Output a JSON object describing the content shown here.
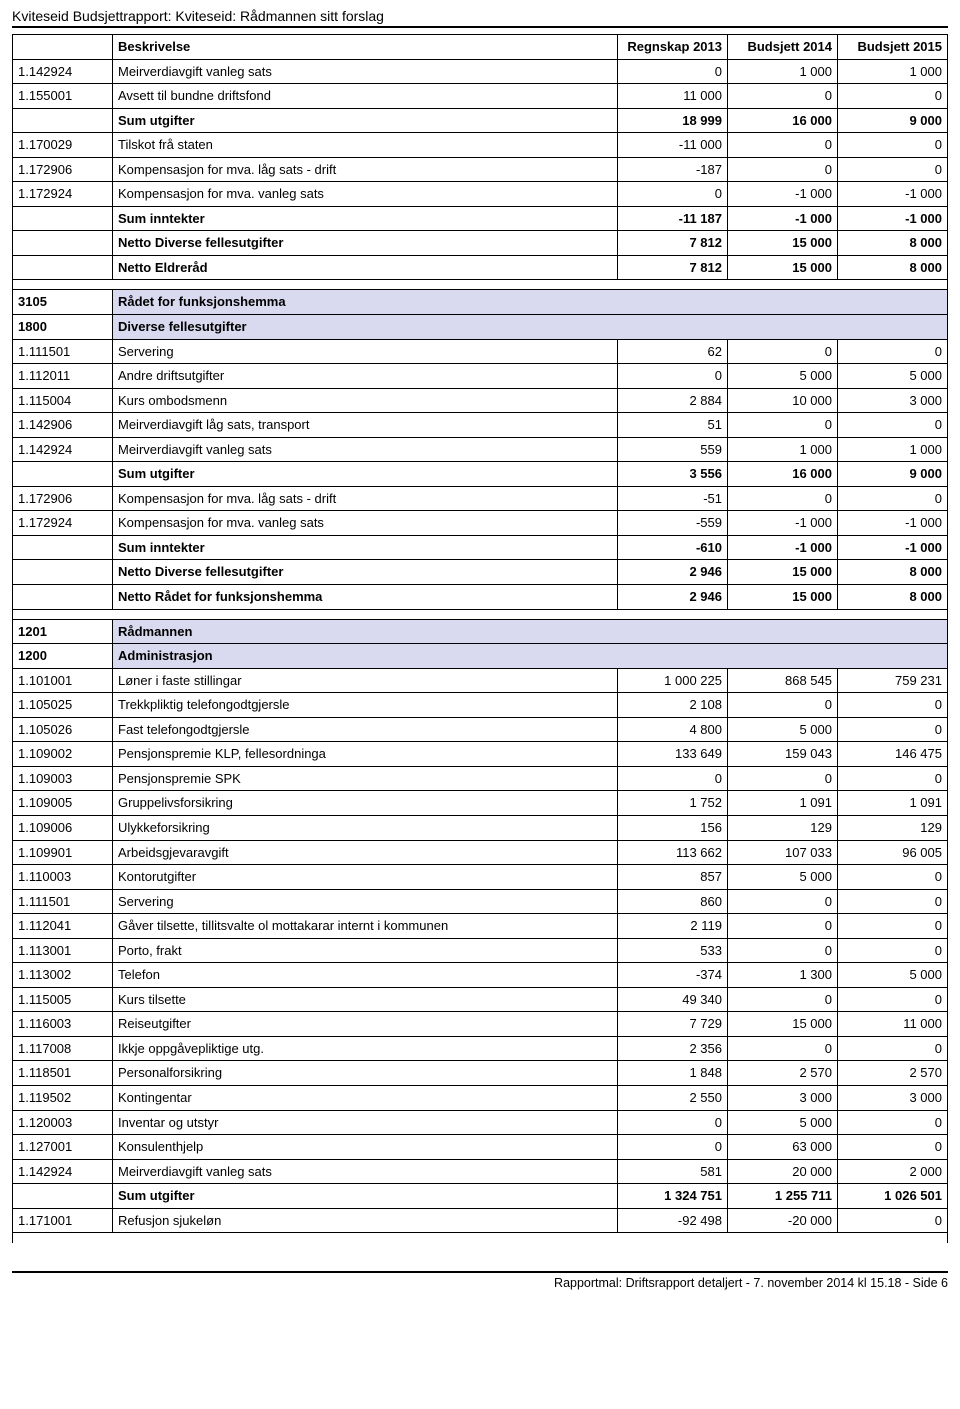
{
  "title": "Kviteseid Budsjettrapport: Kviteseid: Rådmannen sitt forslag",
  "columns": {
    "desc": "Beskrivelse",
    "c2013": "Regnskap 2013",
    "c2014": "Budsjett 2014",
    "c2015": "Budsjett 2015"
  },
  "rows": [
    {
      "type": "data",
      "code": "1.142924",
      "desc": "Meirverdiavgift vanleg sats",
      "v": [
        "0",
        "1 000",
        "1 000"
      ]
    },
    {
      "type": "data",
      "code": "1.155001",
      "desc": "Avsett til bundne driftsfond",
      "v": [
        "11 000",
        "0",
        "0"
      ]
    },
    {
      "type": "bold",
      "code": "",
      "desc": "Sum utgifter",
      "v": [
        "18 999",
        "16 000",
        "9 000"
      ]
    },
    {
      "type": "data",
      "code": "1.170029",
      "desc": "Tilskot frå staten",
      "v": [
        "-11 000",
        "0",
        "0"
      ]
    },
    {
      "type": "data",
      "code": "1.172906",
      "desc": "Kompensasjon for mva. låg sats - drift",
      "v": [
        "-187",
        "0",
        "0"
      ]
    },
    {
      "type": "data",
      "code": "1.172924",
      "desc": "Kompensasjon for mva. vanleg sats",
      "v": [
        "0",
        "-1 000",
        "-1 000"
      ]
    },
    {
      "type": "bold",
      "code": "",
      "desc": "Sum inntekter",
      "v": [
        "-11 187",
        "-1 000",
        "-1 000"
      ]
    },
    {
      "type": "bold",
      "code": "",
      "desc": "Netto Diverse fellesutgifter",
      "v": [
        "7 812",
        "15 000",
        "8 000"
      ]
    },
    {
      "type": "bold",
      "code": "",
      "desc": "Netto Eldreråd",
      "v": [
        "7 812",
        "15 000",
        "8 000"
      ]
    },
    {
      "type": "spacer"
    },
    {
      "type": "section",
      "code": "3105",
      "desc": "Rådet for funksjonshemma"
    },
    {
      "type": "section",
      "code": "1800",
      "desc": "Diverse fellesutgifter"
    },
    {
      "type": "data",
      "code": "1.111501",
      "desc": "Servering",
      "v": [
        "62",
        "0",
        "0"
      ]
    },
    {
      "type": "data",
      "code": "1.112011",
      "desc": "Andre driftsutgifter",
      "v": [
        "0",
        "5 000",
        "5 000"
      ]
    },
    {
      "type": "data",
      "code": "1.115004",
      "desc": "Kurs ombodsmenn",
      "v": [
        "2 884",
        "10 000",
        "3 000"
      ]
    },
    {
      "type": "data",
      "code": "1.142906",
      "desc": "Meirverdiavgift låg sats, transport",
      "v": [
        "51",
        "0",
        "0"
      ]
    },
    {
      "type": "data",
      "code": "1.142924",
      "desc": "Meirverdiavgift vanleg sats",
      "v": [
        "559",
        "1 000",
        "1 000"
      ]
    },
    {
      "type": "bold",
      "code": "",
      "desc": "Sum utgifter",
      "v": [
        "3 556",
        "16 000",
        "9 000"
      ]
    },
    {
      "type": "data",
      "code": "1.172906",
      "desc": "Kompensasjon for mva. låg sats - drift",
      "v": [
        "-51",
        "0",
        "0"
      ]
    },
    {
      "type": "data",
      "code": "1.172924",
      "desc": "Kompensasjon for mva. vanleg sats",
      "v": [
        "-559",
        "-1 000",
        "-1 000"
      ]
    },
    {
      "type": "bold",
      "code": "",
      "desc": "Sum inntekter",
      "v": [
        "-610",
        "-1 000",
        "-1 000"
      ]
    },
    {
      "type": "bold",
      "code": "",
      "desc": "Netto Diverse fellesutgifter",
      "v": [
        "2 946",
        "15 000",
        "8 000"
      ]
    },
    {
      "type": "bold",
      "code": "",
      "desc": "Netto Rådet for funksjonshemma",
      "v": [
        "2 946",
        "15 000",
        "8 000"
      ]
    },
    {
      "type": "spacer"
    },
    {
      "type": "section",
      "code": "1201",
      "desc": "Rådmannen"
    },
    {
      "type": "section",
      "code": "1200",
      "desc": "Administrasjon"
    },
    {
      "type": "data",
      "code": "1.101001",
      "desc": "Løner i faste stillingar",
      "v": [
        "1 000 225",
        "868 545",
        "759 231"
      ]
    },
    {
      "type": "data",
      "code": "1.105025",
      "desc": "Trekkpliktig telefongodtgjersle",
      "v": [
        "2 108",
        "0",
        "0"
      ]
    },
    {
      "type": "data",
      "code": "1.105026",
      "desc": "Fast telefongodtgjersle",
      "v": [
        "4 800",
        "5 000",
        "0"
      ]
    },
    {
      "type": "data",
      "code": "1.109002",
      "desc": "Pensjonspremie KLP, fellesordninga",
      "v": [
        "133 649",
        "159 043",
        "146 475"
      ]
    },
    {
      "type": "data",
      "code": "1.109003",
      "desc": "Pensjonspremie SPK",
      "v": [
        "0",
        "0",
        "0"
      ]
    },
    {
      "type": "data",
      "code": "1.109005",
      "desc": "Gruppelivsforsikring",
      "v": [
        "1 752",
        "1 091",
        "1 091"
      ]
    },
    {
      "type": "data",
      "code": "1.109006",
      "desc": "Ulykkeforsikring",
      "v": [
        "156",
        "129",
        "129"
      ]
    },
    {
      "type": "data",
      "code": "1.109901",
      "desc": "Arbeidsgjevaravgift",
      "v": [
        "113 662",
        "107 033",
        "96 005"
      ]
    },
    {
      "type": "data",
      "code": "1.110003",
      "desc": "Kontorutgifter",
      "v": [
        "857",
        "5 000",
        "0"
      ]
    },
    {
      "type": "data",
      "code": "1.111501",
      "desc": "Servering",
      "v": [
        "860",
        "0",
        "0"
      ]
    },
    {
      "type": "data",
      "code": "1.112041",
      "desc": "Gåver tilsette, tillitsvalte ol mottakarar internt i kommunen",
      "v": [
        "2 119",
        "0",
        "0"
      ]
    },
    {
      "type": "data",
      "code": "1.113001",
      "desc": "Porto, frakt",
      "v": [
        "533",
        "0",
        "0"
      ]
    },
    {
      "type": "data",
      "code": "1.113002",
      "desc": "Telefon",
      "v": [
        "-374",
        "1 300",
        "5 000"
      ]
    },
    {
      "type": "data",
      "code": "1.115005",
      "desc": "Kurs tilsette",
      "v": [
        "49 340",
        "0",
        "0"
      ]
    },
    {
      "type": "data",
      "code": "1.116003",
      "desc": "Reiseutgifter",
      "v": [
        "7 729",
        "15 000",
        "11 000"
      ]
    },
    {
      "type": "data",
      "code": "1.117008",
      "desc": "Ikkje oppgåvepliktige utg.",
      "v": [
        "2 356",
        "0",
        "0"
      ]
    },
    {
      "type": "data",
      "code": "1.118501",
      "desc": "Personalforsikring",
      "v": [
        "1 848",
        "2 570",
        "2 570"
      ]
    },
    {
      "type": "data",
      "code": "1.119502",
      "desc": "Kontingentar",
      "v": [
        "2 550",
        "3 000",
        "3 000"
      ]
    },
    {
      "type": "data",
      "code": "1.120003",
      "desc": "Inventar og utstyr",
      "v": [
        "0",
        "5 000",
        "0"
      ]
    },
    {
      "type": "data",
      "code": "1.127001",
      "desc": "Konsulenthjelp",
      "v": [
        "0",
        "63 000",
        "0"
      ]
    },
    {
      "type": "data",
      "code": "1.142924",
      "desc": "Meirverdiavgift vanleg sats",
      "v": [
        "581",
        "20 000",
        "2 000"
      ]
    },
    {
      "type": "bold",
      "code": "",
      "desc": "Sum utgifter",
      "v": [
        "1 324 751",
        "1 255 711",
        "1 026 501"
      ]
    },
    {
      "type": "data",
      "code": "1.171001",
      "desc": "Refusjon sjukeløn",
      "v": [
        "-92 498",
        "-20 000",
        "0"
      ]
    },
    {
      "type": "spacer"
    }
  ],
  "footer": "Rapportmal: Driftsrapport detaljert - 7. november 2014 kl 15.18 - Side 6",
  "colors": {
    "section_bg": "#d9d9ef",
    "border": "#000000",
    "text": "#000000",
    "background": "#ffffff"
  }
}
